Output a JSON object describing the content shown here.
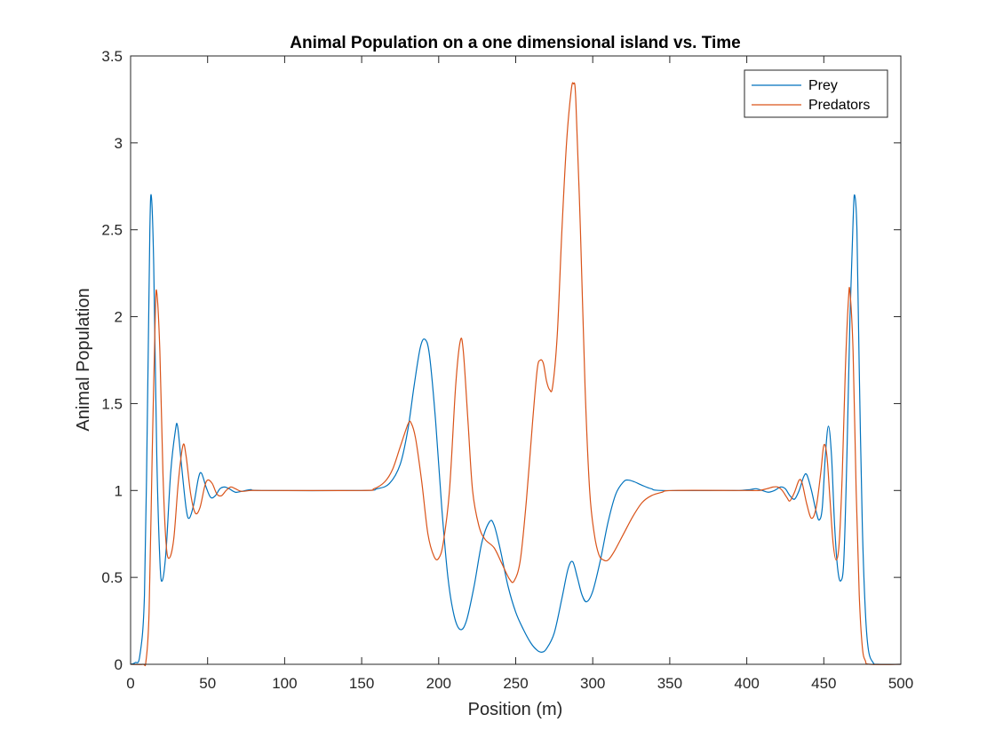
{
  "chart_data": {
    "type": "line",
    "title": "Animal Population on a one dimensional island vs. Time",
    "xlabel": "Position (m)",
    "ylabel": "Animal Population",
    "xlim": [
      0,
      500
    ],
    "ylim": [
      0,
      3.5
    ],
    "xticks": [
      "0",
      "50",
      "100",
      "150",
      "200",
      "250",
      "300",
      "350",
      "400",
      "450",
      "500"
    ],
    "yticks": [
      "0",
      "0.5",
      "1",
      "1.5",
      "2",
      "2.5",
      "3",
      "3.5"
    ],
    "grid": false,
    "legend_position": "top-right",
    "series": [
      {
        "name": "Prey",
        "color": "#0072BD",
        "points": [
          [
            0,
            0
          ],
          [
            3,
            0.01
          ],
          [
            6,
            0.05
          ],
          [
            9,
            0.4
          ],
          [
            11,
            1.5
          ],
          [
            12.5,
            2.5
          ],
          [
            13.5,
            2.69
          ],
          [
            15,
            2.3
          ],
          [
            17,
            1.2
          ],
          [
            19,
            0.6
          ],
          [
            20.5,
            0.48
          ],
          [
            23,
            0.65
          ],
          [
            26,
            1.1
          ],
          [
            29,
            1.34
          ],
          [
            30.5,
            1.37
          ],
          [
            33,
            1.15
          ],
          [
            36,
            0.9
          ],
          [
            38,
            0.84
          ],
          [
            41,
            0.92
          ],
          [
            44,
            1.07
          ],
          [
            46,
            1.1
          ],
          [
            49,
            1.02
          ],
          [
            52,
            0.96
          ],
          [
            55,
            0.97
          ],
          [
            58,
            1.01
          ],
          [
            61,
            1.02
          ],
          [
            64,
            1.01
          ],
          [
            68,
            0.99
          ],
          [
            72,
            0.995
          ],
          [
            78,
            1.005
          ],
          [
            85,
            1.0
          ],
          [
            150,
            1.0
          ],
          [
            160,
            1.01
          ],
          [
            168,
            1.04
          ],
          [
            175,
            1.15
          ],
          [
            180,
            1.35
          ],
          [
            184,
            1.6
          ],
          [
            188,
            1.82
          ],
          [
            191,
            1.87
          ],
          [
            194,
            1.78
          ],
          [
            198,
            1.4
          ],
          [
            202,
            0.9
          ],
          [
            206,
            0.5
          ],
          [
            210,
            0.28
          ],
          [
            214,
            0.2
          ],
          [
            218,
            0.25
          ],
          [
            223,
            0.45
          ],
          [
            228,
            0.7
          ],
          [
            233,
            0.82
          ],
          [
            236,
            0.8
          ],
          [
            240,
            0.66
          ],
          [
            245,
            0.45
          ],
          [
            250,
            0.3
          ],
          [
            255,
            0.2
          ],
          [
            260,
            0.12
          ],
          [
            264,
            0.08
          ],
          [
            267,
            0.07
          ],
          [
            270,
            0.09
          ],
          [
            275,
            0.18
          ],
          [
            280,
            0.38
          ],
          [
            284,
            0.55
          ],
          [
            287,
            0.59
          ],
          [
            290,
            0.5
          ],
          [
            293,
            0.4
          ],
          [
            296,
            0.36
          ],
          [
            300,
            0.42
          ],
          [
            305,
            0.6
          ],
          [
            310,
            0.82
          ],
          [
            315,
            0.98
          ],
          [
            320,
            1.05
          ],
          [
            323,
            1.06
          ],
          [
            327,
            1.05
          ],
          [
            332,
            1.03
          ],
          [
            338,
            1.01
          ],
          [
            345,
            1.0
          ],
          [
            385,
            1.0
          ],
          [
            395,
            1.0
          ],
          [
            402,
            1.005
          ],
          [
            406,
            1.01
          ],
          [
            410,
            1.0
          ],
          [
            414,
            0.99
          ],
          [
            418,
            1.0
          ],
          [
            422,
            1.02
          ],
          [
            425,
            1.01
          ],
          [
            428,
            0.97
          ],
          [
            431,
            0.95
          ],
          [
            434,
            1.0
          ],
          [
            437,
            1.08
          ],
          [
            439,
            1.09
          ],
          [
            442,
            1.0
          ],
          [
            445,
            0.88
          ],
          [
            447,
            0.83
          ],
          [
            449,
            0.9
          ],
          [
            451,
            1.2
          ],
          [
            453,
            1.37
          ],
          [
            455,
            1.2
          ],
          [
            457,
            0.8
          ],
          [
            459,
            0.55
          ],
          [
            461,
            0.48
          ],
          [
            463,
            0.6
          ],
          [
            465,
            1.2
          ],
          [
            467,
            2.0
          ],
          [
            469,
            2.55
          ],
          [
            470,
            2.7
          ],
          [
            471.5,
            2.5
          ],
          [
            473,
            1.7
          ],
          [
            475,
            0.8
          ],
          [
            477,
            0.3
          ],
          [
            479,
            0.08
          ],
          [
            482,
            0.01
          ],
          [
            485,
            0
          ],
          [
            500,
            0
          ]
        ]
      },
      {
        "name": "Predators",
        "color": "#D95319",
        "points": [
          [
            0,
            0
          ],
          [
            8,
            0
          ],
          [
            10,
            0.02
          ],
          [
            12,
            0.3
          ],
          [
            14,
            1.2
          ],
          [
            16,
            2.0
          ],
          [
            17,
            2.14
          ],
          [
            19,
            1.8
          ],
          [
            21,
            1.1
          ],
          [
            23,
            0.7
          ],
          [
            25,
            0.61
          ],
          [
            28,
            0.72
          ],
          [
            31,
            1.05
          ],
          [
            34,
            1.26
          ],
          [
            36,
            1.2
          ],
          [
            39,
            0.98
          ],
          [
            42,
            0.87
          ],
          [
            45,
            0.9
          ],
          [
            48,
            1.02
          ],
          [
            50,
            1.06
          ],
          [
            53,
            1.04
          ],
          [
            56,
            0.98
          ],
          [
            59,
            0.97
          ],
          [
            62,
            1.0
          ],
          [
            65,
            1.02
          ],
          [
            68,
            1.01
          ],
          [
            72,
            0.995
          ],
          [
            78,
            1.0
          ],
          [
            85,
            1.0
          ],
          [
            150,
            1.0
          ],
          [
            158,
            1.01
          ],
          [
            165,
            1.05
          ],
          [
            170,
            1.12
          ],
          [
            175,
            1.25
          ],
          [
            180,
            1.38
          ],
          [
            182,
            1.39
          ],
          [
            185,
            1.3
          ],
          [
            189,
            1.05
          ],
          [
            193,
            0.75
          ],
          [
            197,
            0.62
          ],
          [
            200,
            0.61
          ],
          [
            203,
            0.7
          ],
          [
            207,
            1.0
          ],
          [
            211,
            1.6
          ],
          [
            214,
            1.86
          ],
          [
            216,
            1.8
          ],
          [
            219,
            1.4
          ],
          [
            222,
            1.0
          ],
          [
            226,
            0.8
          ],
          [
            230,
            0.72
          ],
          [
            236,
            0.67
          ],
          [
            241,
            0.58
          ],
          [
            246,
            0.49
          ],
          [
            249,
            0.48
          ],
          [
            253,
            0.6
          ],
          [
            257,
            0.95
          ],
          [
            261,
            1.4
          ],
          [
            264,
            1.7
          ],
          [
            266,
            1.75
          ],
          [
            268,
            1.73
          ],
          [
            270,
            1.63
          ],
          [
            272,
            1.58
          ],
          [
            274,
            1.6
          ],
          [
            277,
            1.9
          ],
          [
            280,
            2.5
          ],
          [
            283,
            3.0
          ],
          [
            286,
            3.3
          ],
          [
            287.5,
            3.34
          ],
          [
            289,
            3.25
          ],
          [
            292,
            2.5
          ],
          [
            295,
            1.6
          ],
          [
            298,
            1.0
          ],
          [
            301,
            0.75
          ],
          [
            304,
            0.63
          ],
          [
            307,
            0.6
          ],
          [
            310,
            0.6
          ],
          [
            314,
            0.65
          ],
          [
            320,
            0.75
          ],
          [
            326,
            0.85
          ],
          [
            332,
            0.93
          ],
          [
            338,
            0.97
          ],
          [
            345,
            0.99
          ],
          [
            352,
            1.0
          ],
          [
            395,
            1.0
          ],
          [
            402,
            1.0
          ],
          [
            408,
            1.0
          ],
          [
            413,
            1.01
          ],
          [
            417,
            1.02
          ],
          [
            420,
            1.02
          ],
          [
            423,
            1.0
          ],
          [
            426,
            0.96
          ],
          [
            428,
            0.94
          ],
          [
            431,
            0.99
          ],
          [
            434,
            1.06
          ],
          [
            436,
            1.04
          ],
          [
            439,
            0.92
          ],
          [
            442,
            0.84
          ],
          [
            445,
            0.9
          ],
          [
            448,
            1.1
          ],
          [
            450,
            1.26
          ],
          [
            452,
            1.2
          ],
          [
            454,
            0.95
          ],
          [
            456,
            0.7
          ],
          [
            458,
            0.6
          ],
          [
            460,
            0.7
          ],
          [
            462,
            1.1
          ],
          [
            464,
            1.7
          ],
          [
            466,
            2.1
          ],
          [
            467,
            2.14
          ],
          [
            469,
            1.8
          ],
          [
            471,
            1.0
          ],
          [
            473,
            0.4
          ],
          [
            475,
            0.1
          ],
          [
            477,
            0.02
          ],
          [
            480,
            0
          ],
          [
            500,
            0
          ]
        ]
      }
    ]
  }
}
